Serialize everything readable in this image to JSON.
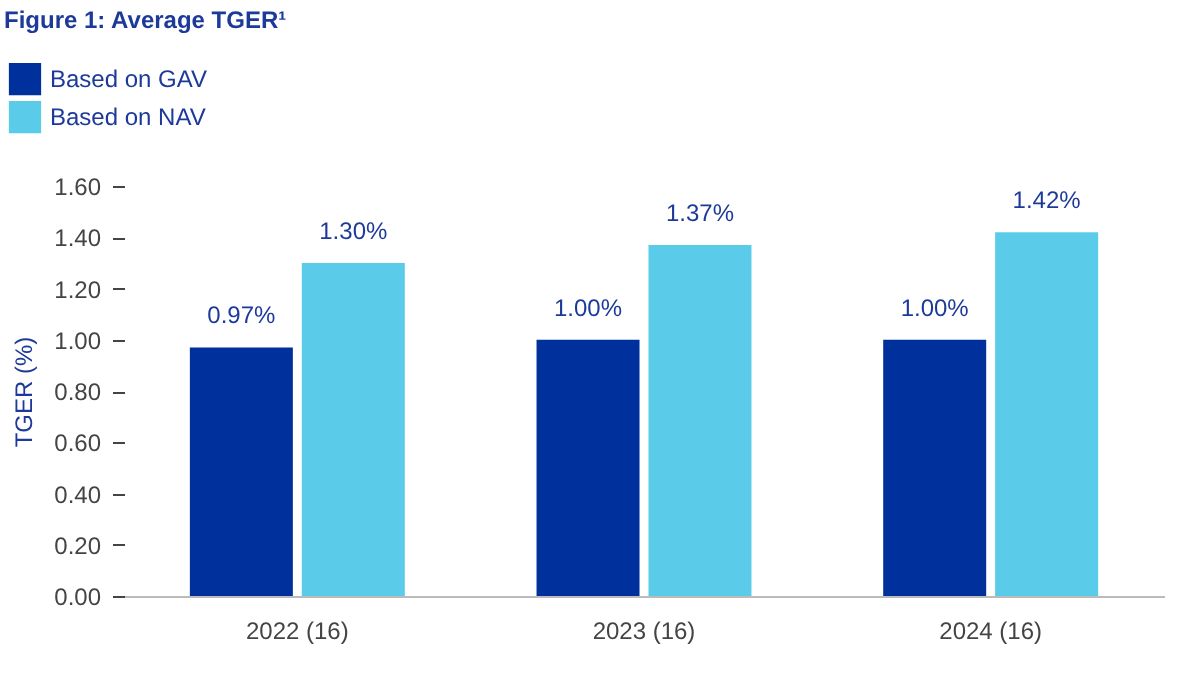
{
  "chart_data": {
    "type": "bar",
    "title": "Figure 1: Average TGER¹",
    "ylabel": "TGER (%)",
    "categories": [
      "2022 (16)",
      "2023 (16)",
      "2024 (16)"
    ],
    "series": [
      {
        "name": "Based on GAV",
        "color": "#00309c",
        "values": [
          0.97,
          1.0,
          1.0
        ],
        "value_labels": [
          "0.97%",
          "1.00%",
          "1.00%"
        ]
      },
      {
        "name": "Based on NAV",
        "color": "#5bcbea",
        "values": [
          1.3,
          1.37,
          1.42
        ],
        "value_labels": [
          "1.30%",
          "1.37%",
          "1.42%"
        ]
      }
    ],
    "ylim": [
      0,
      1.6
    ],
    "yticks": [
      {
        "value": 0,
        "label": "0.00"
      },
      {
        "value": 0.2,
        "label": "0.20"
      },
      {
        "value": 0.4,
        "label": "0.40"
      },
      {
        "value": 0.6,
        "label": "0.60"
      },
      {
        "value": 0.8,
        "label": "0.80"
      },
      {
        "value": 1.0,
        "label": "1.00"
      },
      {
        "value": 1.2,
        "label": "1.20"
      },
      {
        "value": 1.4,
        "label": "1.40"
      },
      {
        "value": 1.6,
        "label": "1.60"
      }
    ],
    "grid": false,
    "legend": "top left"
  }
}
